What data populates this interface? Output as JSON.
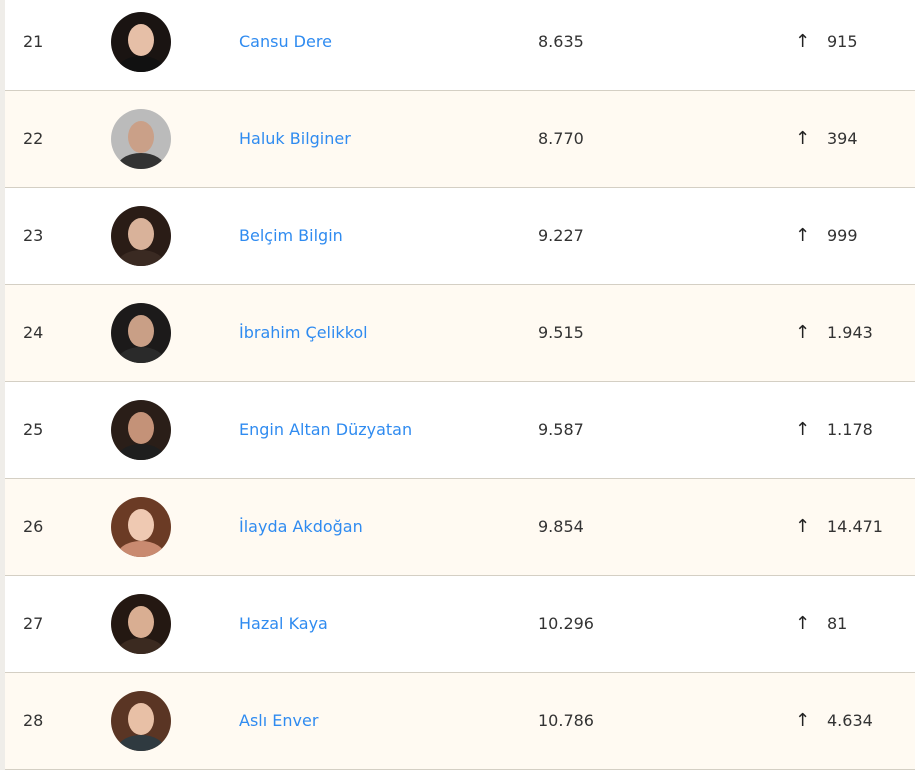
{
  "colors": {
    "link": "#2f8bf0",
    "alt_row": "#fffaf2",
    "border": "#d4cfc4"
  },
  "rows": [
    {
      "rank": "21",
      "name": "Cansu Dere",
      "score": "8.635",
      "trend": "up",
      "change": "915",
      "hair": "#1a1412",
      "skin": "#e6bfa7",
      "clothes": "#111"
    },
    {
      "rank": "22",
      "name": "Haluk Bilginer",
      "score": "8.770",
      "trend": "up",
      "change": "394",
      "hair": "#bbb",
      "skin": "#caa088",
      "clothes": "#333"
    },
    {
      "rank": "23",
      "name": "Belçim Bilgin",
      "score": "9.227",
      "trend": "up",
      "change": "999",
      "hair": "#2a1c16",
      "skin": "#d9b29a",
      "clothes": "#3a2a22"
    },
    {
      "rank": "24",
      "name": "İbrahim Çelikkol",
      "score": "9.515",
      "trend": "up",
      "change": "1.943",
      "hair": "#1c1a1a",
      "skin": "#c99f86",
      "clothes": "#2a2a2a"
    },
    {
      "rank": "25",
      "name": "Engin Altan Düzyatan",
      "score": "9.587",
      "trend": "up",
      "change": "1.178",
      "hair": "#2a1e18",
      "skin": "#c49278",
      "clothes": "#1e1e1e"
    },
    {
      "rank": "26",
      "name": "İlayda Akdoğan",
      "score": "9.854",
      "trend": "up",
      "change": "14.471",
      "hair": "#6b3b25",
      "skin": "#efc9b2",
      "clothes": "#c98a70"
    },
    {
      "rank": "27",
      "name": "Hazal Kaya",
      "score": "10.296",
      "trend": "up",
      "change": "81",
      "hair": "#241812",
      "skin": "#d9ae92",
      "clothes": "#3b2a20"
    },
    {
      "rank": "28",
      "name": "Aslı Enver",
      "score": "10.786",
      "trend": "up",
      "change": "4.634",
      "hair": "#5a3524",
      "skin": "#e8c0a6",
      "clothes": "#2f3a40"
    }
  ],
  "icons": {
    "trend_up": "arrow-up-icon",
    "trend_glyph": "↑"
  }
}
